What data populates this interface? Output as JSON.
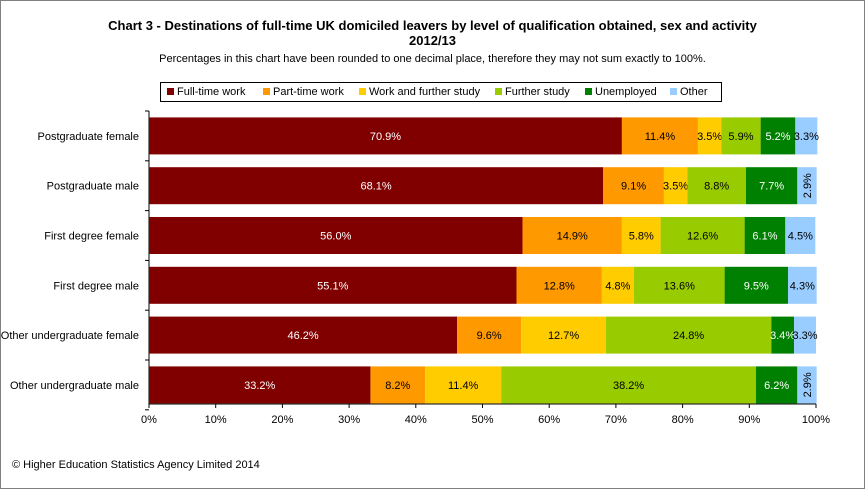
{
  "chart_data": {
    "type": "bar",
    "orientation": "horizontal",
    "stacked": true,
    "title": "Chart 3 - Destinations  of full-time UK domiciled leavers by level of qualification obtained, sex and activity",
    "title_line2": "2012/13",
    "subtitle": "Percentages in this chart have been rounded to one decimal place, therefore they may not sum exactly to 100%.",
    "categories": [
      "Postgraduate female",
      "Postgraduate male",
      "First degree female",
      "First degree male",
      "Other undergraduate female",
      "Other undergraduate male"
    ],
    "series": [
      {
        "name": "Full-time work",
        "color": "#800000",
        "values": [
          70.9,
          68.1,
          56.0,
          55.1,
          46.2,
          33.2
        ]
      },
      {
        "name": "Part-time work",
        "color": "#FF9900",
        "values": [
          11.4,
          9.1,
          14.9,
          12.8,
          9.6,
          8.2
        ]
      },
      {
        "name": "Work and further study",
        "color": "#FFCC00",
        "values": [
          3.5,
          3.5,
          5.8,
          4.8,
          12.7,
          11.4
        ]
      },
      {
        "name": "Further study",
        "color": "#99CC00",
        "values": [
          5.9,
          8.8,
          12.6,
          13.6,
          24.8,
          38.2
        ]
      },
      {
        "name": "Unemployed",
        "color": "#008000",
        "values": [
          5.2,
          7.7,
          6.1,
          9.5,
          3.4,
          6.2
        ]
      },
      {
        "name": "Other",
        "color": "#99CCFF",
        "values": [
          3.3,
          2.9,
          4.5,
          4.3,
          3.3,
          2.9
        ]
      }
    ],
    "xlim": [
      0,
      100
    ],
    "x_ticks": [
      "0%",
      "10%",
      "20%",
      "30%",
      "40%",
      "50%",
      "60%",
      "70%",
      "80%",
      "90%",
      "100%"
    ],
    "legend_position": "top",
    "grid": false
  },
  "footer": "© Higher Education Statistics Agency Limited 2014"
}
